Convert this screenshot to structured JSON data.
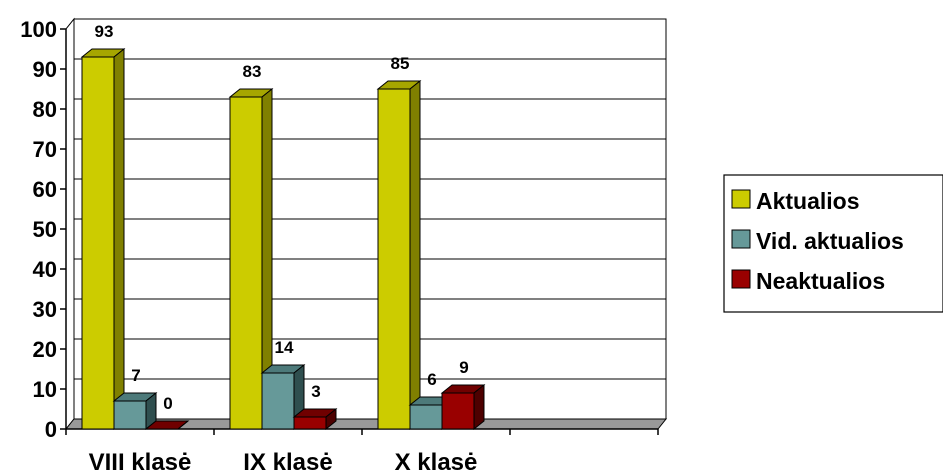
{
  "chart_data": {
    "type": "bar",
    "categories": [
      "VIII klasė",
      "IX klasė",
      "X klasė",
      ""
    ],
    "series": [
      {
        "name": "Aktualios",
        "values": [
          93,
          83,
          85,
          null
        ],
        "color": "#CCCC00",
        "dark": "#808000",
        "top": "#A6A600"
      },
      {
        "name": "Vid. aktualios",
        "values": [
          7,
          14,
          6,
          null
        ],
        "color": "#669999",
        "dark": "#2F4F4F",
        "top": "#4D7A7A"
      },
      {
        "name": "Neaktualios",
        "values": [
          0,
          3,
          9,
          null
        ],
        "color": "#990000",
        "dark": "#4D0000",
        "top": "#700000"
      }
    ],
    "yticks": [
      0,
      10,
      20,
      30,
      40,
      50,
      60,
      70,
      80,
      90,
      100
    ],
    "ylim": [
      0,
      100
    ],
    "grid": true,
    "legend": "right",
    "floor_color": "#999999"
  }
}
